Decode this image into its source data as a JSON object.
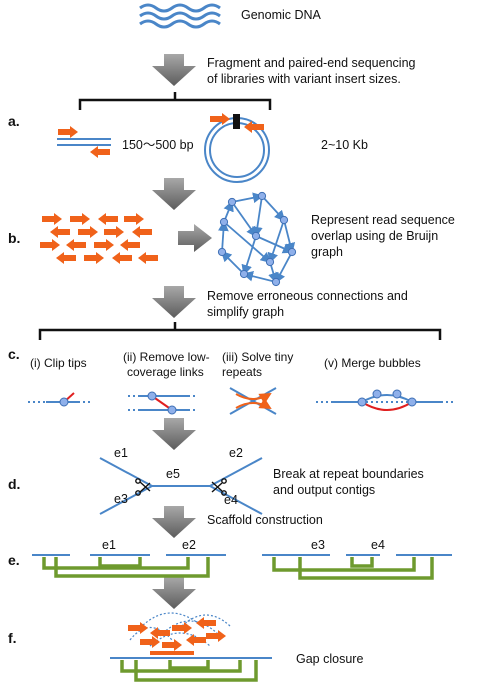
{
  "steps": {
    "a": "a.",
    "b": "b.",
    "c": "c.",
    "d": "d.",
    "e": "e.",
    "f": "f."
  },
  "genomic_dna": "Genomic DNA",
  "fragment_line1": "Fragment and paired-end sequencing",
  "fragment_line2": "of libraries with variant insert sizes.",
  "insert_short": "150～500 bp",
  "insert_long": "2~10 Kb",
  "debruijn_line1": "Represent read sequence",
  "debruijn_line2": "overlap using de Bruijn",
  "debruijn_line3": "graph",
  "remove_line1": "Remove erroneous connections and",
  "remove_line2": "simplify graph",
  "c_ops": {
    "clip": "(i) Clip tips",
    "lowcov1": "(ii) Remove low-",
    "lowcov2": "coverage links",
    "repeats1": "(iii) Solve tiny",
    "repeats2": "repeats",
    "bubbles": "(v) Merge bubbles"
  },
  "edges": {
    "e1": "e1",
    "e2": "e2",
    "e3": "e3",
    "e4": "e4",
    "e5": "e5"
  },
  "break_line1": "Break at repeat boundaries",
  "break_line2": "and output contigs",
  "scaffold": "Scaffold construction",
  "gap_closure": "Gap closure",
  "colors": {
    "strand": "#4a86c8",
    "read": "#f0621a",
    "link": "#6e9a2e",
    "fix": "#e02020",
    "arrow": "#7a7a7a"
  }
}
